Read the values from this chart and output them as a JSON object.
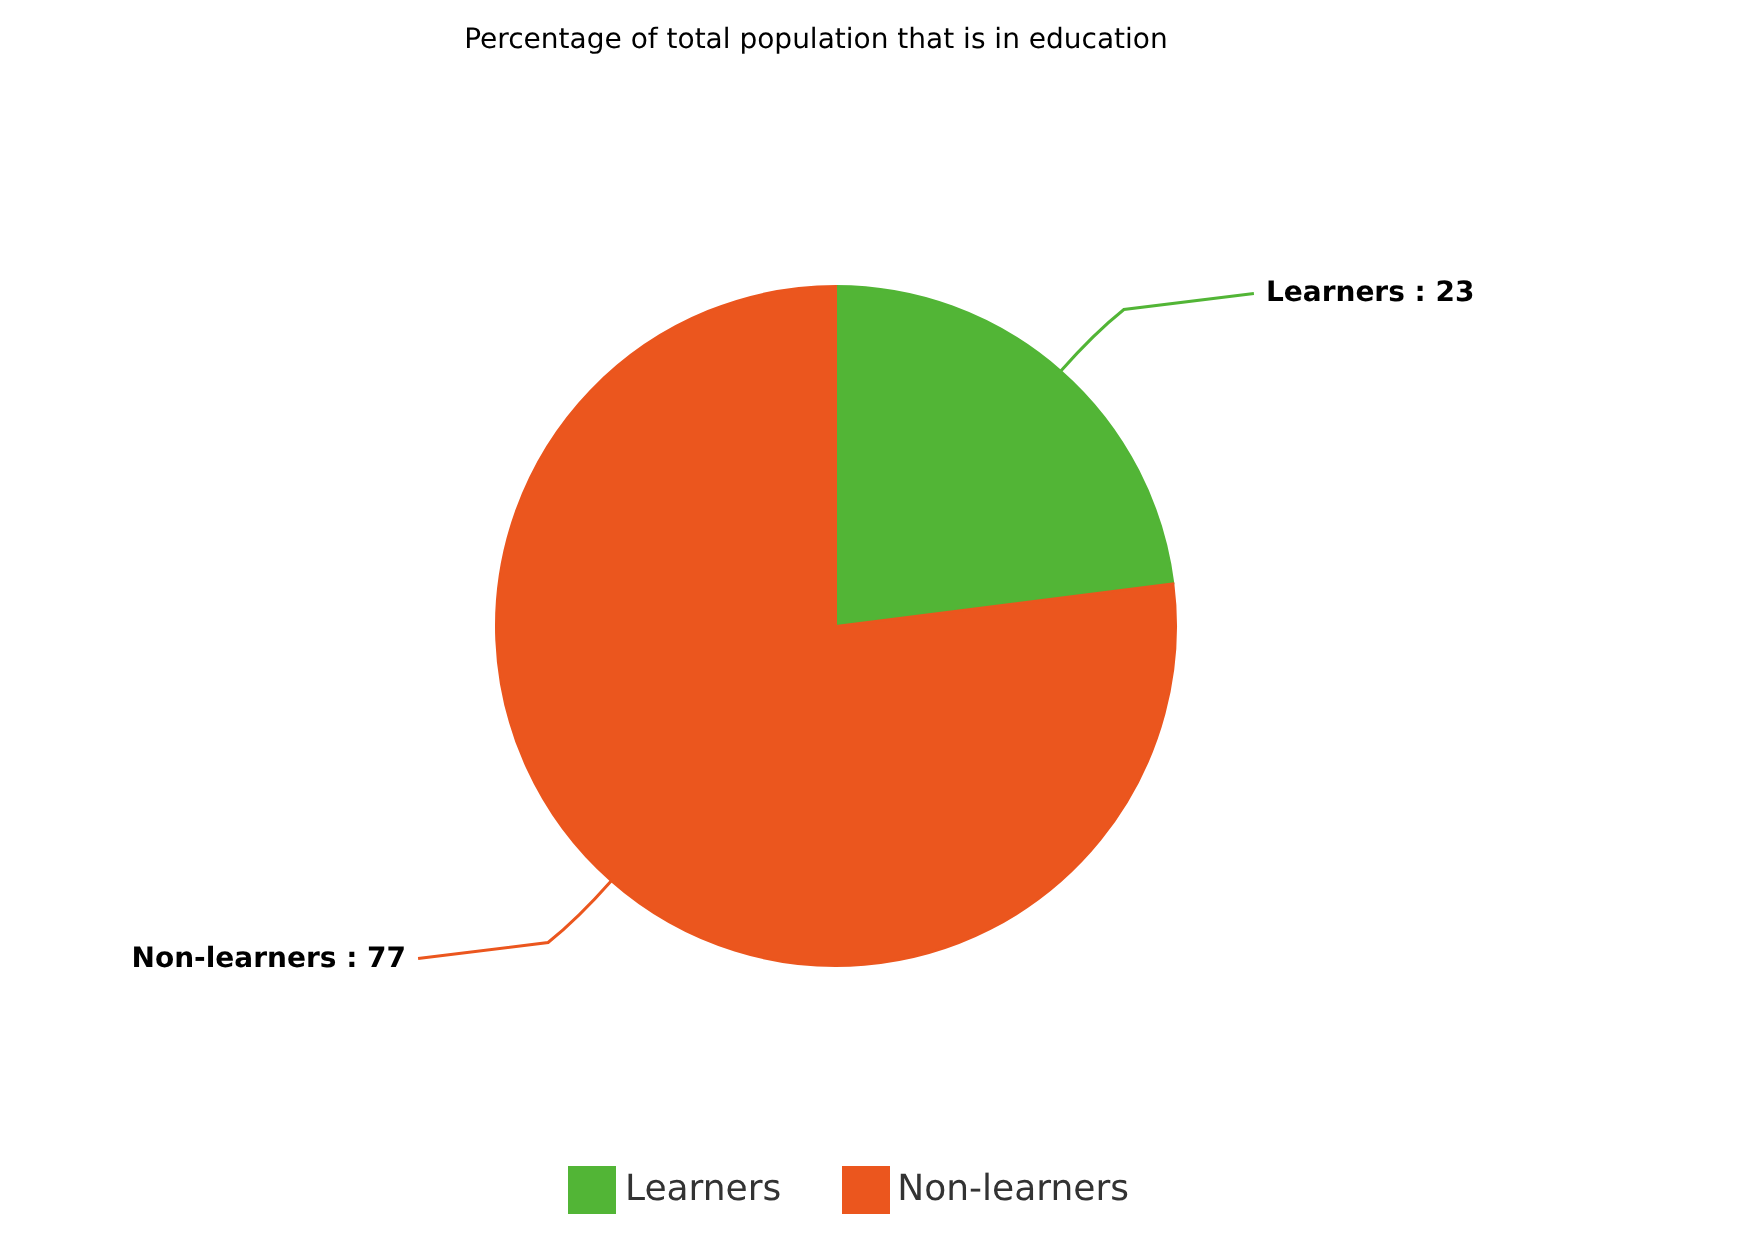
{
  "chart_data": {
    "type": "pie",
    "title": "Percentage of total population that is in education",
    "categories": [
      "Learners",
      "Non-learners"
    ],
    "values": [
      23,
      77
    ],
    "colors": [
      "#52b536",
      "#eb561e"
    ],
    "value_labels": [
      "Learners : 23",
      "Non-learners : 77"
    ],
    "legend": "bottom"
  }
}
